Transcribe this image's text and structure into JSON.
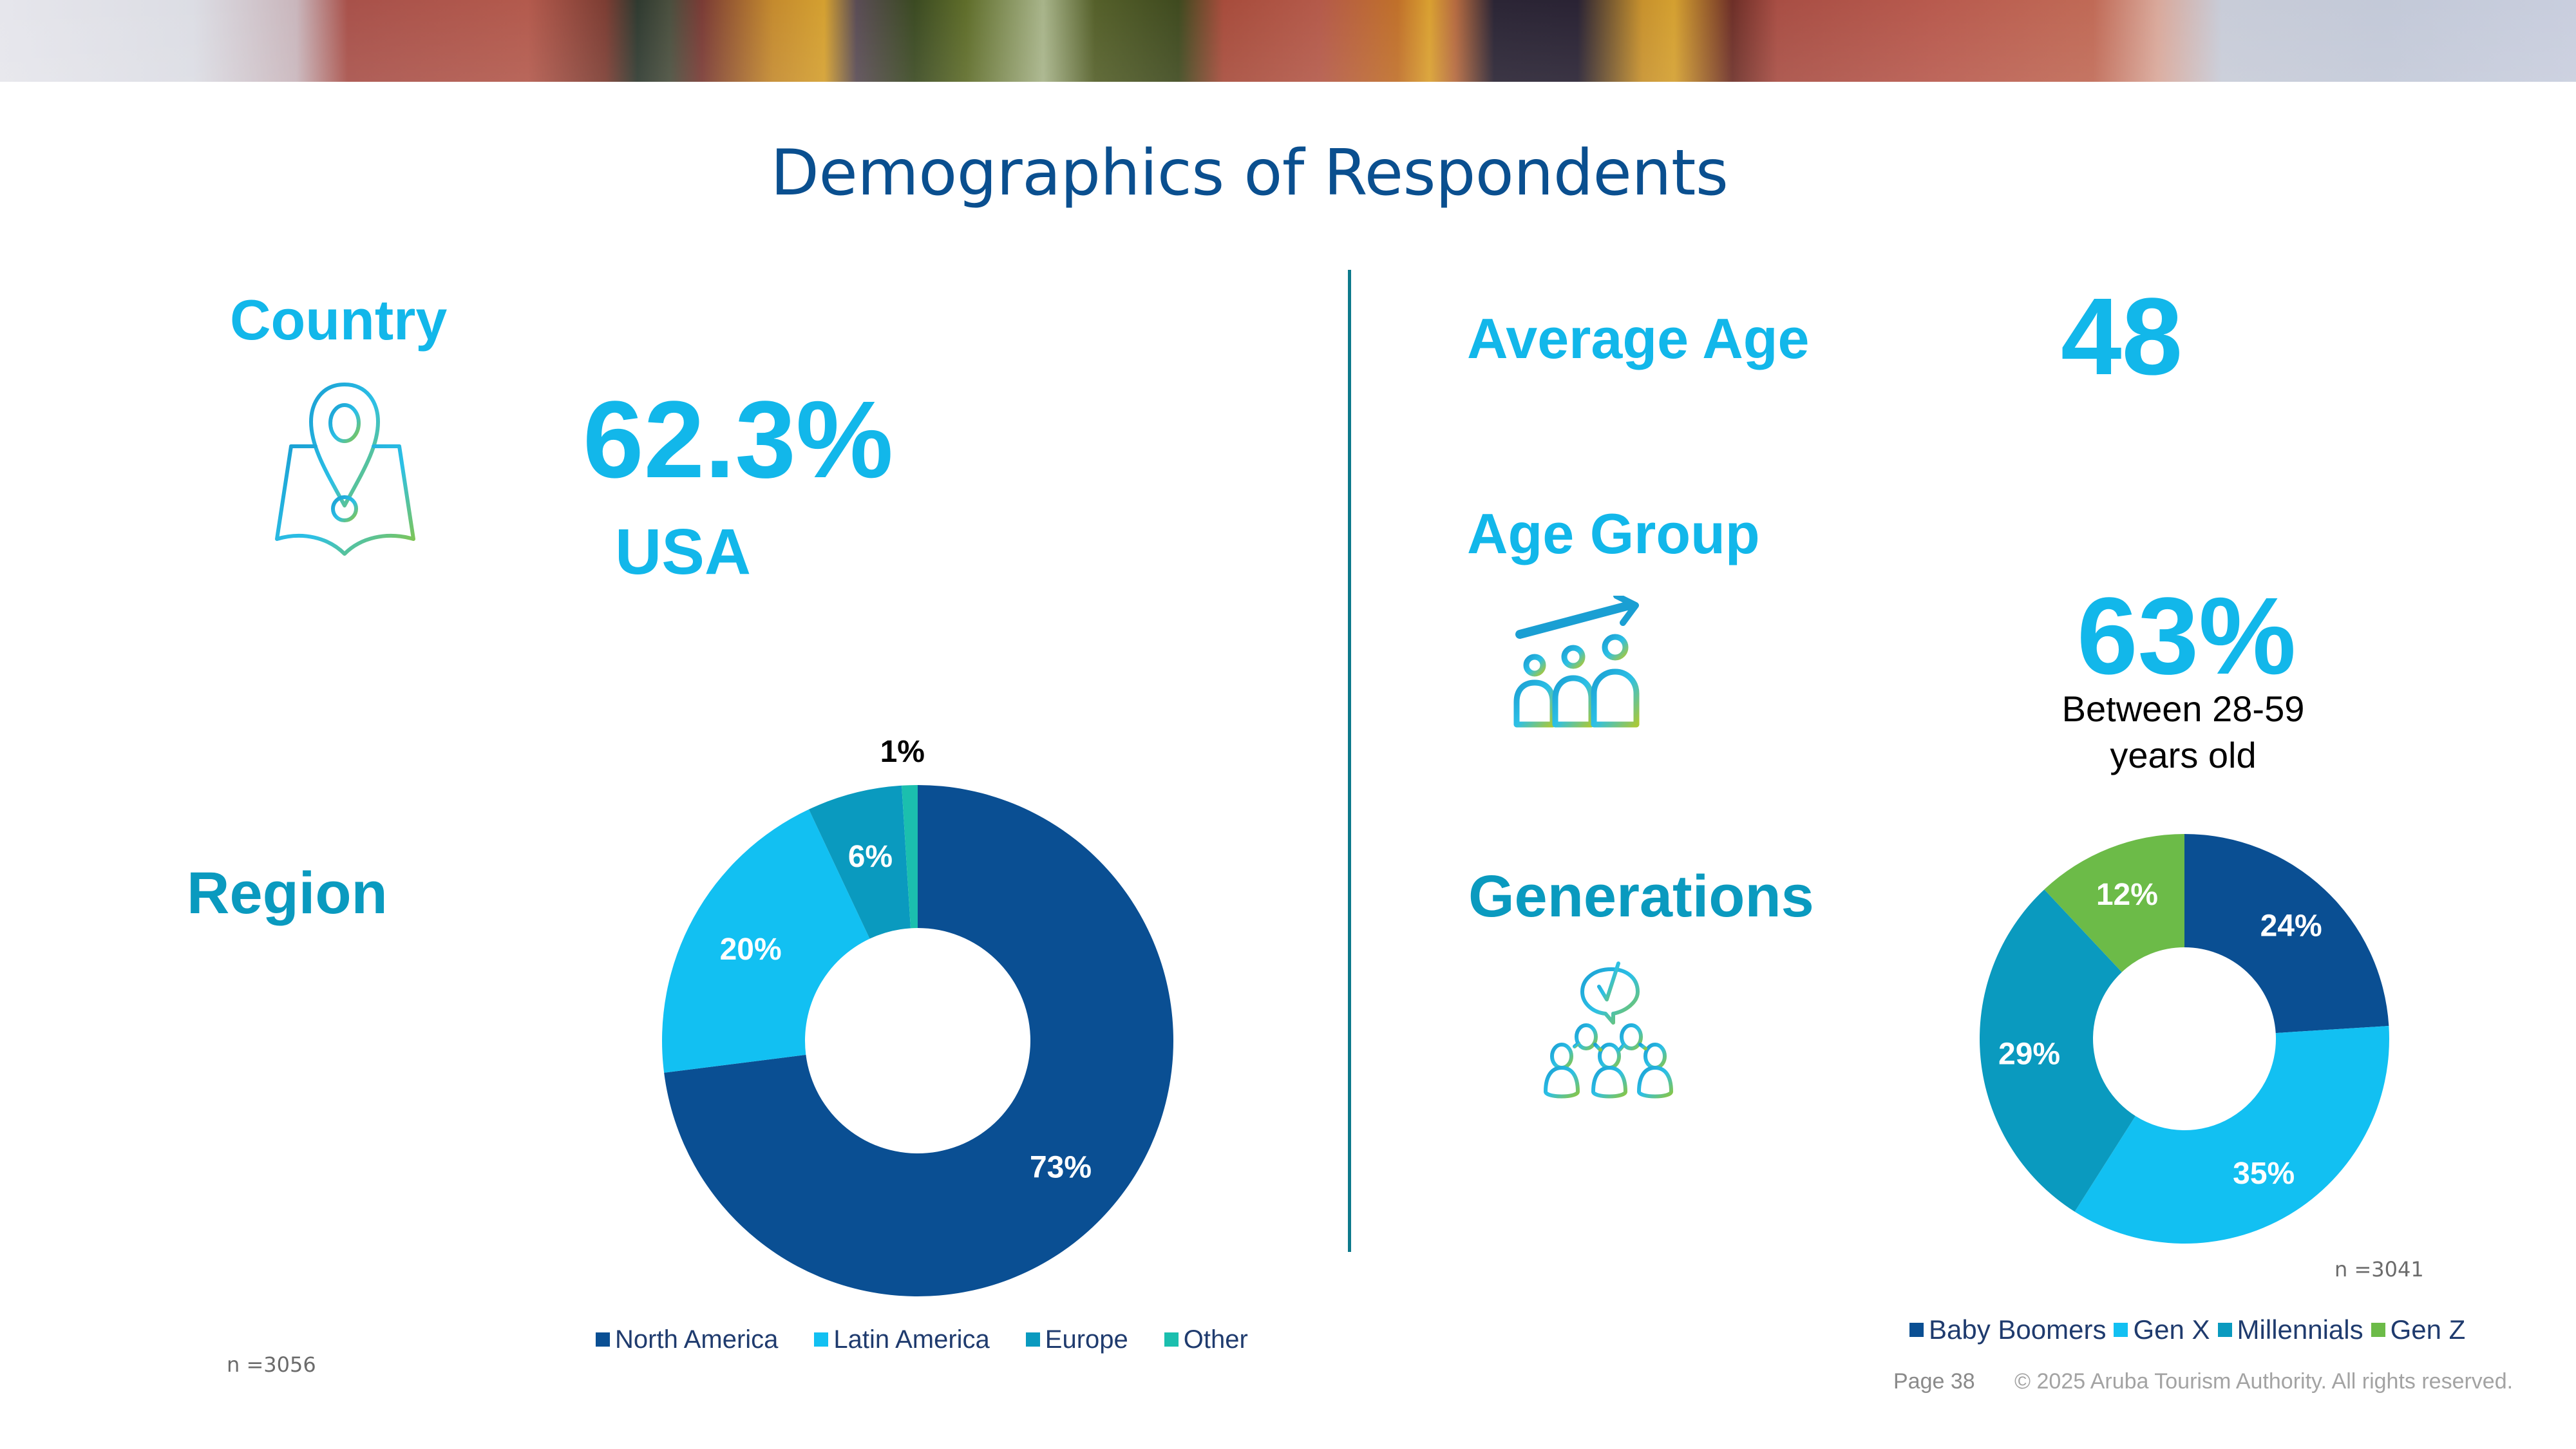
{
  "title": "Demographics of Respondents",
  "country": {
    "label": "Country",
    "icon": "map-pin-icon",
    "value": "62.3%",
    "name": "USA"
  },
  "region": {
    "label": "Region",
    "n_label": "n =3056"
  },
  "average_age": {
    "label": "Average Age",
    "value": "48"
  },
  "age_group": {
    "label": "Age Group",
    "icon": "people-growth-icon",
    "value": "63%",
    "description_line1": "Between 28-59",
    "description_line2": "years old"
  },
  "generations": {
    "label": "Generations",
    "icon": "group-feedback-icon",
    "n_label": "n =3041"
  },
  "footer": {
    "page": "Page 38",
    "copyright": "© 2025 Aruba Tourism Authority. All rights reserved."
  },
  "colors": {
    "title": "#0a4f8f",
    "accent_cyan": "#12b7ea",
    "accent_teal": "#0a9abf",
    "divider": "#0e7a8c"
  },
  "chart_data": [
    {
      "type": "pie",
      "variant": "donut",
      "title": "Region",
      "categories": [
        "North America",
        "Latin America",
        "Europe",
        "Other"
      ],
      "values": [
        73,
        20,
        6,
        1
      ],
      "labels": [
        "73%",
        "20%",
        "6%",
        "1%"
      ],
      "colors": [
        "#0a4f93",
        "#12c0f2",
        "#0a9abf",
        "#1bbfae"
      ],
      "legend_position": "bottom",
      "start_angle": "12 o'clock, clockwise"
    },
    {
      "type": "pie",
      "variant": "donut",
      "title": "Generations",
      "categories": [
        "Baby Boomers",
        "Gen X",
        "Millennials",
        "Gen Z"
      ],
      "values": [
        24,
        35,
        29,
        12
      ],
      "labels": [
        "24%",
        "35%",
        "29%",
        "12%"
      ],
      "colors": [
        "#0a4f93",
        "#12c0f2",
        "#0a9abf",
        "#6cbb48"
      ],
      "legend_position": "bottom",
      "start_angle": "12 o'clock, clockwise"
    }
  ]
}
